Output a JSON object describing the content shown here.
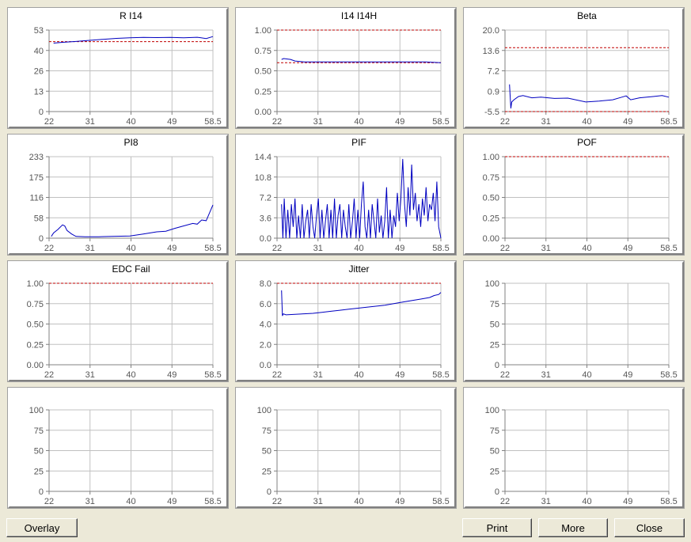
{
  "buttons": {
    "overlay": "Overlay",
    "print": "Print",
    "more": "More",
    "close": "Close"
  },
  "colors": {
    "series": "#0000c0",
    "limit": "#c00000",
    "grid": "#c0c0c0",
    "window": "#ece9d8"
  },
  "x_ticks": [
    "22",
    "31",
    "40",
    "49",
    "58.5"
  ],
  "x_range": [
    22,
    58.5
  ],
  "chart_data": [
    {
      "type": "line",
      "title": "R I14",
      "yticks": [
        "53",
        "40",
        "26",
        "13",
        "0"
      ],
      "ylim": [
        0,
        53
      ],
      "limits": [
        45.5
      ],
      "series": [
        {
          "x": [
            23,
            25,
            28,
            31,
            34,
            37,
            40,
            43,
            46,
            49,
            52,
            55,
            57,
            58.5
          ],
          "y": [
            44.5,
            45,
            45.6,
            46.3,
            47,
            47.6,
            48,
            48.2,
            48.1,
            48.2,
            48,
            48.3,
            47.5,
            48.8
          ]
        }
      ]
    },
    {
      "type": "line",
      "title": "I14 I14H",
      "yticks": [
        "1.00",
        "0.75",
        "0.50",
        "0.25",
        "0.00"
      ],
      "ylim": [
        0,
        1
      ],
      "limits": [
        1.0,
        0.6
      ],
      "series": [
        {
          "x": [
            23,
            23.5,
            25,
            26,
            28,
            31,
            35,
            40,
            45,
            50,
            55,
            58.5
          ],
          "y": [
            0.64,
            0.65,
            0.64,
            0.62,
            0.61,
            0.61,
            0.61,
            0.61,
            0.61,
            0.61,
            0.61,
            0.6
          ]
        }
      ]
    },
    {
      "type": "line",
      "title": "Beta",
      "yticks": [
        "20.0",
        "13.6",
        "7.2",
        "0.9",
        "-5.5"
      ],
      "ylim": [
        -5.5,
        20
      ],
      "limits": [
        14.5,
        -5.5
      ],
      "series": [
        {
          "x": [
            23,
            23.3,
            23.5,
            24,
            25,
            26,
            28,
            30,
            33,
            36,
            40,
            43,
            46,
            48,
            49,
            50,
            52,
            55,
            57,
            58.5
          ],
          "y": [
            3.0,
            -4.5,
            -2.5,
            -1.8,
            -0.8,
            -0.5,
            -1.2,
            -1.0,
            -1.4,
            -1.3,
            -2.5,
            -2.2,
            -1.8,
            -1.0,
            -0.6,
            -1.8,
            -1.2,
            -0.8,
            -0.5,
            -1.0
          ]
        }
      ]
    },
    {
      "type": "line",
      "title": "PI8",
      "yticks": [
        "233",
        "175",
        "116",
        "58",
        "0"
      ],
      "ylim": [
        0,
        233
      ],
      "limits": [],
      "series": [
        {
          "x": [
            22.5,
            23,
            24,
            25,
            25.5,
            26,
            27,
            28,
            30,
            33,
            36,
            40,
            43,
            46,
            48,
            50,
            52,
            54,
            55,
            56,
            57,
            58,
            58.5
          ],
          "y": [
            5,
            15,
            25,
            38,
            35,
            22,
            12,
            5,
            4,
            4,
            5,
            6,
            12,
            18,
            20,
            28,
            35,
            42,
            40,
            52,
            50,
            80,
            95
          ]
        }
      ]
    },
    {
      "type": "line",
      "title": "PIF",
      "yticks": [
        "14.4",
        "10.8",
        "7.2",
        "3.6",
        "0.0"
      ],
      "ylim": [
        0,
        14.4
      ],
      "limits": [],
      "series": [
        {
          "x": [
            23,
            23.3,
            23.6,
            24,
            24.4,
            24.8,
            25.2,
            25.6,
            26,
            26.4,
            26.8,
            27.2,
            27.6,
            28,
            28.4,
            28.8,
            29.2,
            29.6,
            30,
            30.4,
            30.8,
            31.2,
            31.6,
            32,
            32.4,
            32.8,
            33.2,
            33.6,
            34,
            34.4,
            34.8,
            35.2,
            35.6,
            36,
            36.4,
            36.8,
            37.2,
            37.6,
            38,
            38.4,
            38.8,
            39.2,
            39.6,
            40,
            40.4,
            40.8,
            41.2,
            41.6,
            42,
            42.4,
            42.8,
            43.2,
            43.6,
            44,
            44.4,
            44.8,
            45.2,
            45.6,
            46,
            46.4,
            46.8,
            47.2,
            47.6,
            48,
            48.4,
            48.8,
            49.2,
            49.6,
            50,
            50.4,
            50.8,
            51.2,
            51.6,
            52,
            52.4,
            52.8,
            53.2,
            53.6,
            54,
            54.4,
            54.8,
            55.2,
            55.6,
            56,
            56.4,
            56.8,
            57.2,
            57.6,
            58,
            58.5
          ],
          "y": [
            6,
            0,
            7,
            0,
            5,
            0,
            6,
            2,
            7,
            0,
            4,
            0,
            6,
            0,
            3,
            5,
            0,
            6,
            2,
            0,
            4,
            7,
            0,
            5,
            0,
            3,
            6,
            0,
            5,
            0,
            7,
            0,
            4,
            6,
            0,
            5,
            2,
            0,
            6,
            0,
            3,
            7,
            0,
            5,
            0,
            6,
            10,
            2,
            0,
            5,
            0,
            6,
            3,
            0,
            7,
            1,
            4,
            0,
            3,
            9,
            0,
            5,
            0,
            4,
            2,
            8,
            3,
            7,
            14,
            6,
            2,
            9,
            4,
            13,
            5,
            8,
            3,
            6,
            2,
            7,
            4,
            9,
            3,
            6,
            5,
            8,
            3,
            10,
            2,
            0
          ]
        }
      ]
    },
    {
      "type": "line",
      "title": "POF",
      "yticks": [
        "1.00",
        "0.75",
        "0.50",
        "0.25",
        "0.00"
      ],
      "ylim": [
        0,
        1
      ],
      "limits": [
        1.0
      ],
      "series": []
    },
    {
      "type": "line",
      "title": "EDC Fail",
      "yticks": [
        "1.00",
        "0.75",
        "0.50",
        "0.25",
        "0.00"
      ],
      "ylim": [
        0,
        1
      ],
      "limits": [
        1.0
      ],
      "series": []
    },
    {
      "type": "line",
      "title": "Jitter",
      "yticks": [
        "8.0",
        "6.0",
        "4.0",
        "2.0",
        "0.0"
      ],
      "ylim": [
        0,
        8
      ],
      "limits": [
        8.0
      ],
      "series": [
        {
          "x": [
            23,
            23.2,
            23.4,
            24,
            26,
            28,
            30,
            32,
            34,
            36,
            38,
            40,
            42,
            44,
            46,
            48,
            50,
            52,
            54,
            56,
            57,
            58,
            58.5
          ],
          "y": [
            7.3,
            4.8,
            5.0,
            4.9,
            4.95,
            5.0,
            5.05,
            5.15,
            5.25,
            5.35,
            5.45,
            5.55,
            5.65,
            5.75,
            5.85,
            6.0,
            6.15,
            6.3,
            6.45,
            6.6,
            6.8,
            6.9,
            7.1
          ]
        }
      ]
    },
    {
      "type": "line",
      "title": "",
      "yticks": [
        "100",
        "75",
        "50",
        "25",
        "0"
      ],
      "ylim": [
        0,
        100
      ],
      "limits": [],
      "series": []
    },
    {
      "type": "line",
      "title": "",
      "yticks": [
        "100",
        "75",
        "50",
        "25",
        "0"
      ],
      "ylim": [
        0,
        100
      ],
      "limits": [],
      "series": []
    },
    {
      "type": "line",
      "title": "",
      "yticks": [
        "100",
        "75",
        "50",
        "25",
        "0"
      ],
      "ylim": [
        0,
        100
      ],
      "limits": [],
      "series": []
    },
    {
      "type": "line",
      "title": "",
      "yticks": [
        "100",
        "75",
        "50",
        "25",
        "0"
      ],
      "ylim": [
        0,
        100
      ],
      "limits": [],
      "series": []
    }
  ]
}
